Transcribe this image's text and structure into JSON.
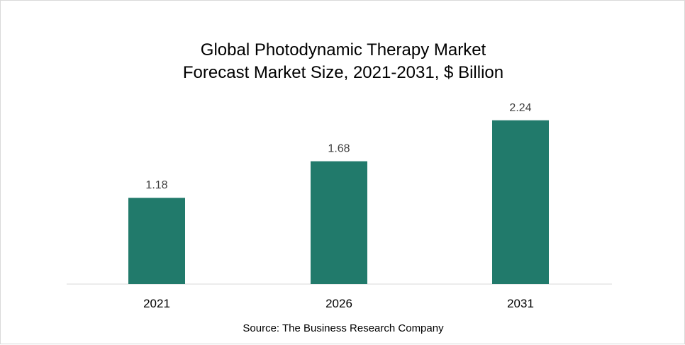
{
  "chart_data": {
    "type": "bar",
    "title_lines": [
      "Global Photodynamic Therapy Market",
      "Forecast Market Size, 2021-2031, $ Billion"
    ],
    "categories": [
      "2021",
      "2026",
      "2031"
    ],
    "values": [
      1.18,
      1.68,
      2.24
    ],
    "data_labels": [
      "1.18",
      "1.68",
      "2.24"
    ],
    "xlabel": "",
    "ylabel": "",
    "ylim": [
      0,
      2.5
    ],
    "grid": false,
    "legend": "none",
    "bar_color": "#217a6b",
    "source": "Source: The Business Research Company"
  }
}
